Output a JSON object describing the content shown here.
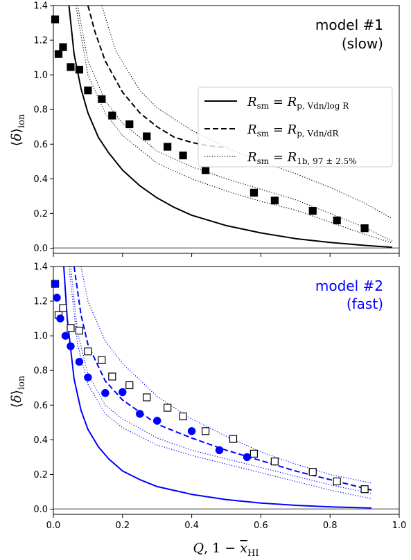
{
  "chart_data": [
    {
      "type": "line",
      "label_lines": [
        "model #1",
        "(slow)"
      ],
      "label_color": "#000000",
      "accent": "#000000",
      "ylabel": "⟨δ⟩ion",
      "xlim": [
        0.0,
        1.0
      ],
      "ylim": [
        -0.03,
        1.4
      ],
      "x_ticks": [
        "0.0",
        "0.2",
        "0.4",
        "0.6",
        "0.8",
        "1.0"
      ],
      "y_ticks": [
        "0.0",
        "0.2",
        "0.4",
        "0.6",
        "0.8",
        "1.0",
        "1.2",
        "1.4"
      ],
      "series": [
        {
          "style": "solid",
          "x": [
            0.045,
            0.06,
            0.08,
            0.1,
            0.13,
            0.16,
            0.2,
            0.25,
            0.3,
            0.35,
            0.4,
            0.5,
            0.6,
            0.7,
            0.8,
            0.9,
            0.98
          ],
          "y": [
            1.4,
            1.12,
            0.92,
            0.78,
            0.64,
            0.55,
            0.45,
            0.36,
            0.29,
            0.235,
            0.19,
            0.13,
            0.088,
            0.055,
            0.033,
            0.016,
            0.005
          ]
        },
        {
          "style": "dashed",
          "x": [
            0.1,
            0.12,
            0.15,
            0.2,
            0.25,
            0.3,
            0.35,
            0.4,
            0.45,
            0.5
          ],
          "y": [
            1.4,
            1.25,
            1.08,
            0.9,
            0.78,
            0.7,
            0.64,
            0.61,
            0.59,
            0.58
          ]
        },
        {
          "style": "dotted",
          "x": [
            0.14,
            0.18,
            0.25,
            0.3,
            0.4,
            0.5,
            0.6,
            0.7,
            0.8,
            0.9,
            0.98
          ],
          "y": [
            1.4,
            1.14,
            0.91,
            0.81,
            0.68,
            0.58,
            0.5,
            0.43,
            0.35,
            0.26,
            0.17
          ]
        },
        {
          "style": "dotted",
          "x": [
            0.07,
            0.1,
            0.15,
            0.2,
            0.3,
            0.4,
            0.5,
            0.6,
            0.7,
            0.8,
            0.9,
            0.98
          ],
          "y": [
            1.4,
            1.08,
            0.85,
            0.72,
            0.56,
            0.47,
            0.4,
            0.34,
            0.28,
            0.2,
            0.12,
            0.04
          ]
        },
        {
          "style": "dotted",
          "x": [
            0.065,
            0.1,
            0.15,
            0.2,
            0.3,
            0.4,
            0.5,
            0.6,
            0.7,
            0.8,
            0.9,
            0.98
          ],
          "y": [
            1.4,
            1.0,
            0.78,
            0.65,
            0.49,
            0.4,
            0.33,
            0.27,
            0.22,
            0.15,
            0.08,
            0.03
          ]
        }
      ],
      "markers": [
        {
          "shape": "square",
          "fill": "#000000",
          "stroke": "#000000",
          "x": [
            0.005,
            0.015,
            0.028,
            0.05,
            0.075,
            0.1,
            0.14,
            0.17,
            0.22,
            0.27,
            0.33,
            0.375,
            0.44,
            0.58,
            0.64,
            0.75,
            0.82,
            0.9
          ],
          "y": [
            1.32,
            1.12,
            1.16,
            1.045,
            1.03,
            0.91,
            0.86,
            0.765,
            0.715,
            0.645,
            0.585,
            0.535,
            0.45,
            0.32,
            0.275,
            0.215,
            0.16,
            0.115
          ]
        }
      ],
      "legend": {
        "placement": "center-right",
        "entries": [
          {
            "style": "solid",
            "lhs": "R",
            "lhs_sub": "sm",
            "rhs": "R",
            "rhs_sub": "p, Vdn/log R"
          },
          {
            "style": "dashed",
            "lhs": "R",
            "lhs_sub": "sm",
            "rhs": "R",
            "rhs_sub": "p, Vdn/dR"
          },
          {
            "style": "dotted",
            "lhs": "R",
            "lhs_sub": "sm",
            "rhs": "R",
            "rhs_sub": "1b, 97 ± 2.5%"
          }
        ]
      }
    },
    {
      "type": "line",
      "label_lines": [
        "model #2",
        "(fast)"
      ],
      "label_color": "#0000ff",
      "accent": "#0000ff",
      "xlabel": "Q, 1 − x̄HI",
      "ylabel": "⟨δ⟩ion",
      "xlim": [
        0.0,
        1.0
      ],
      "ylim": [
        -0.03,
        1.4
      ],
      "x_ticks": [
        "0.0",
        "0.2",
        "0.4",
        "0.6",
        "0.8",
        "1.0"
      ],
      "y_ticks": [
        "0.0",
        "0.2",
        "0.4",
        "0.6",
        "0.8",
        "1.0",
        "1.2",
        "1.4"
      ],
      "series": [
        {
          "style": "solid",
          "x": [
            0.03,
            0.04,
            0.06,
            0.08,
            0.1,
            0.13,
            0.16,
            0.2,
            0.25,
            0.3,
            0.4,
            0.5,
            0.6,
            0.7,
            0.8,
            0.92
          ],
          "y": [
            1.4,
            1.1,
            0.75,
            0.57,
            0.46,
            0.36,
            0.29,
            0.22,
            0.17,
            0.13,
            0.085,
            0.055,
            0.035,
            0.022,
            0.013,
            0.006
          ]
        },
        {
          "style": "dashed",
          "x": [
            0.06,
            0.08,
            0.1,
            0.15,
            0.2,
            0.3,
            0.4,
            0.5,
            0.6,
            0.7,
            0.8,
            0.92
          ],
          "y": [
            1.4,
            1.12,
            0.95,
            0.74,
            0.63,
            0.49,
            0.41,
            0.34,
            0.28,
            0.22,
            0.17,
            0.11
          ]
        },
        {
          "style": "dotted",
          "x": [
            0.08,
            0.1,
            0.15,
            0.2,
            0.3,
            0.4,
            0.5,
            0.6,
            0.7,
            0.8,
            0.92
          ],
          "y": [
            1.4,
            1.2,
            0.97,
            0.84,
            0.65,
            0.52,
            0.42,
            0.33,
            0.26,
            0.2,
            0.15
          ]
        },
        {
          "style": "dotted",
          "x": [
            0.05,
            0.07,
            0.1,
            0.15,
            0.2,
            0.3,
            0.4,
            0.5,
            0.6,
            0.7,
            0.8,
            0.92
          ],
          "y": [
            1.4,
            1.02,
            0.78,
            0.6,
            0.52,
            0.41,
            0.34,
            0.29,
            0.24,
            0.19,
            0.14,
            0.09
          ]
        },
        {
          "style": "dotted",
          "x": [
            0.045,
            0.07,
            0.1,
            0.15,
            0.2,
            0.3,
            0.4,
            0.5,
            0.6,
            0.7,
            0.8,
            0.92
          ],
          "y": [
            1.4,
            0.95,
            0.72,
            0.55,
            0.47,
            0.37,
            0.31,
            0.26,
            0.21,
            0.16,
            0.11,
            0.06
          ]
        }
      ],
      "markers": [
        {
          "shape": "square",
          "fill": "#ffffff",
          "stroke": "#000000",
          "x": [
            0.005,
            0.015,
            0.028,
            0.05,
            0.075,
            0.1,
            0.14,
            0.17,
            0.22,
            0.27,
            0.33,
            0.375,
            0.44,
            0.52,
            0.58,
            0.64,
            0.75,
            0.82,
            0.9
          ],
          "y": [
            1.3,
            1.12,
            1.16,
            1.045,
            1.03,
            0.91,
            0.86,
            0.765,
            0.715,
            0.645,
            0.585,
            0.535,
            0.45,
            0.405,
            0.32,
            0.275,
            0.215,
            0.16,
            0.115
          ]
        },
        {
          "shape": "circle",
          "fill": "#0000ff",
          "stroke": "#0000ff",
          "x": [
            0.005,
            0.01,
            0.02,
            0.035,
            0.05,
            0.075,
            0.1,
            0.15,
            0.2,
            0.25,
            0.3,
            0.4,
            0.48,
            0.56
          ],
          "y": [
            1.3,
            1.22,
            1.1,
            1.0,
            0.94,
            0.85,
            0.76,
            0.67,
            0.675,
            0.55,
            0.51,
            0.45,
            0.34,
            0.3
          ]
        }
      ]
    }
  ]
}
